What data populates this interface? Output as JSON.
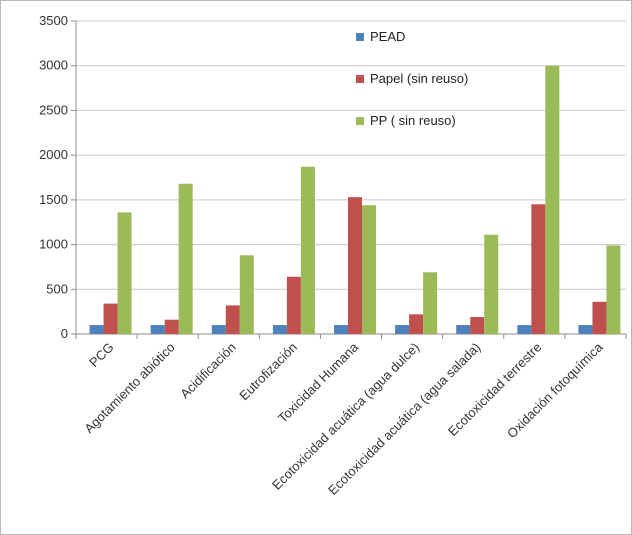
{
  "chart_data": {
    "type": "bar",
    "title": "",
    "xlabel": "",
    "ylabel": "",
    "ylim": [
      0,
      3500
    ],
    "yticks": [
      "0",
      "500",
      "1000",
      "1500",
      "2000",
      "2500",
      "3000",
      "3500"
    ],
    "grid": true,
    "legend_position": "top-right",
    "categories": [
      "PCG",
      "Agotamiento abiótico",
      "Acidificación",
      "Eutrofización",
      "Toxicidad Humana",
      "Ecotoxicidad acuática (agua dulce)",
      "Ecotoxicidad acuática (agua salada)",
      "Ecotoxicidad terrestre",
      "Oxidación fotoquímica"
    ],
    "series": [
      {
        "name": "PEAD",
        "color": "#4f81bd",
        "values": [
          100,
          100,
          100,
          100,
          100,
          100,
          100,
          100,
          100
        ]
      },
      {
        "name": "Papel (sin reuso)",
        "color": "#c0504d",
        "values": [
          340,
          160,
          320,
          640,
          1530,
          220,
          190,
          1450,
          360
        ]
      },
      {
        "name": "PP ( sin reuso)",
        "color": "#9bbb59",
        "values": [
          1360,
          1680,
          880,
          1870,
          1440,
          690,
          1110,
          3000,
          990
        ]
      }
    ]
  }
}
